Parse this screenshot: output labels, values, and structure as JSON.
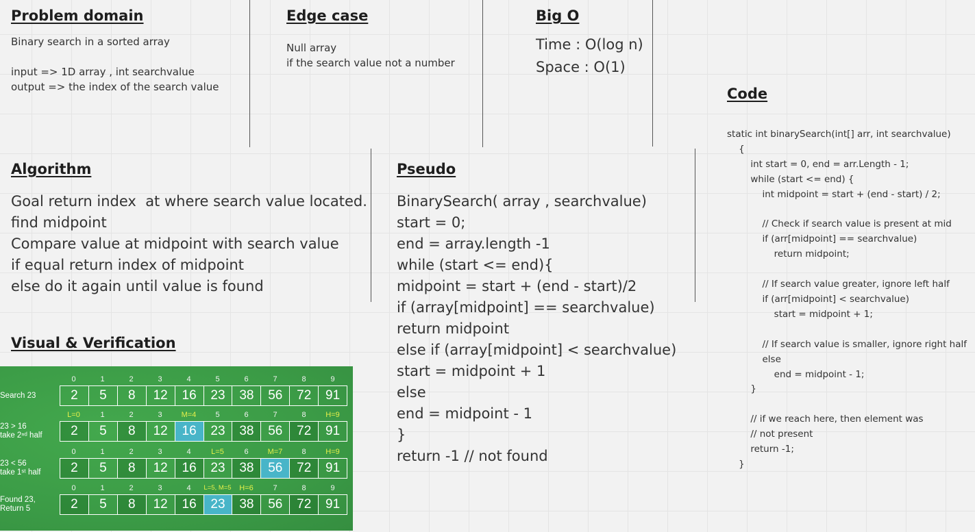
{
  "problem": {
    "title": "Problem domain",
    "text": "Binary search in a sorted array\n\ninput => 1D array , int searchvalue\noutput => the index of the search value"
  },
  "edge": {
    "title": "Edge case",
    "text": "Null array\nif the search value not a number"
  },
  "bigo": {
    "title": "Big O",
    "text": "Time : O(log n)\nSpace : O(1)"
  },
  "code": {
    "title": "Code",
    "text": "static int binarySearch(int[] arr, int searchvalue)\n    {\n        int start = 0, end = arr.Length - 1;\n        while (start <= end) {\n            int midpoint = start + (end - start) / 2;\n\n            // Check if search value is present at mid\n            if (arr[midpoint] == searchvalue)\n                return midpoint;\n\n            // If search value greater, ignore left half\n            if (arr[midpoint] < searchvalue)\n                start = midpoint + 1;\n\n            // If search value is smaller, ignore right half\n            else\n                end = midpoint - 1;\n        }\n\n        // if we reach here, then element was\n        // not present\n        return -1;\n    }"
  },
  "algorithm": {
    "title": "Algorithm",
    "text": "Goal return index  at where search value located.\nfind midpoint\nCompare value at midpoint with search value\nif equal return index of midpoint\nelse do it again until value is found"
  },
  "pseudo": {
    "title": "Pseudo",
    "text": "BinarySearch( array , searchvalue)\nstart = 0;\nend = array.length -1\nwhile (start <= end){\nmidpoint = start + (end - start)/2\nif (array[midpoint] == searchvalue)\nreturn midpoint\nelse if (array[midpoint] < searchvalue)\nstart = midpoint + 1\nelse\nend = midpoint - 1\n}\nreturn -1 // not found"
  },
  "visual": {
    "title": "Visual & Verification",
    "values": [
      "2",
      "5",
      "8",
      "12",
      "16",
      "23",
      "38",
      "56",
      "72",
      "91"
    ],
    "rows": [
      {
        "label": "Search 23",
        "indices": [
          "0",
          "1",
          "2",
          "3",
          "4",
          "5",
          "6",
          "7",
          "8",
          "9"
        ],
        "marks": [],
        "highlight": null
      },
      {
        "label": "23 > 16\ntake 2ⁿᵈ half",
        "indices": [
          "L=0",
          "1",
          "2",
          "3",
          "M=4",
          "5",
          "6",
          "7",
          "8",
          "H=9"
        ],
        "marks": [
          0,
          4,
          9
        ],
        "highlight": 4
      },
      {
        "label": "23 < 56\ntake 1ˢᵗ half",
        "indices": [
          "0",
          "1",
          "2",
          "3",
          "4",
          "L=5",
          "6",
          "M=7",
          "8",
          "H=9"
        ],
        "marks": [
          5,
          7,
          9
        ],
        "highlight": 7
      },
      {
        "label": "Found 23,\nReturn 5",
        "indices": [
          "0",
          "1",
          "2",
          "3",
          "4",
          "L=5, M=5",
          "H=6",
          "7",
          "8",
          "9"
        ],
        "marks": [
          5,
          6
        ],
        "highlight": 5
      }
    ]
  }
}
